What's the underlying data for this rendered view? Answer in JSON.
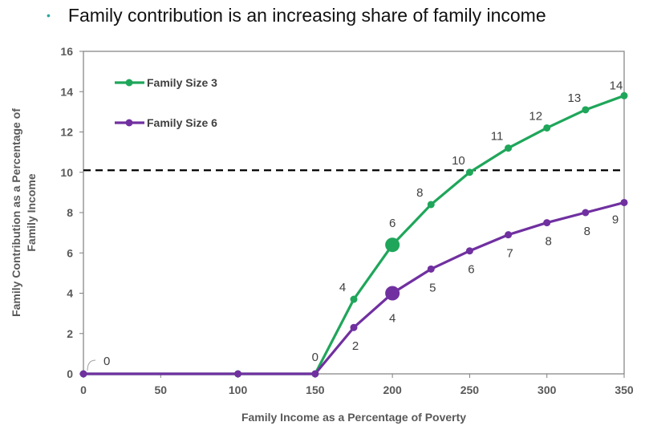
{
  "header": {
    "bullet": "•",
    "text": "Family contribution is an increasing share of family income"
  },
  "chart_data": {
    "type": "line",
    "title": "",
    "xlabel": "Family Income as a Percentage of Poverty",
    "ylabel_line1": "Family Contribution as a Percentage of",
    "ylabel_line2": "Family Income",
    "xlim": [
      0,
      350
    ],
    "ylim": [
      0,
      16
    ],
    "xticks": [
      0,
      50,
      100,
      150,
      200,
      250,
      300,
      350
    ],
    "yticks": [
      0,
      2,
      4,
      6,
      8,
      10,
      12,
      14,
      16
    ],
    "grid": false,
    "reference_line": {
      "y": 10.1,
      "style": "dashed"
    },
    "legend": {
      "position": "top-left"
    },
    "series": [
      {
        "name": "Family Size 3",
        "color": "#1fa65a",
        "x": [
          0,
          100,
          150,
          175,
          200,
          225,
          250,
          275,
          300,
          325,
          350
        ],
        "y": [
          0,
          0,
          0,
          3.7,
          6.4,
          8.4,
          10.0,
          11.2,
          12.2,
          13.1,
          13.8
        ],
        "highlight_x": 200,
        "labels": [
          {
            "x": 175,
            "y": 3.7,
            "text": "4"
          },
          {
            "x": 200,
            "y": 6.4,
            "text": "6"
          },
          {
            "x": 225,
            "y": 8.4,
            "text": "8"
          },
          {
            "x": 250,
            "y": 10.0,
            "text": "10"
          },
          {
            "x": 275,
            "y": 11.2,
            "text": "11"
          },
          {
            "x": 300,
            "y": 12.2,
            "text": "12"
          },
          {
            "x": 325,
            "y": 13.1,
            "text": "13"
          },
          {
            "x": 350,
            "y": 13.8,
            "text": "14"
          }
        ]
      },
      {
        "name": "Family Size 6",
        "color": "#7030a0",
        "x": [
          0,
          100,
          150,
          175,
          200,
          225,
          250,
          275,
          300,
          325,
          350
        ],
        "y": [
          0,
          0,
          0,
          2.3,
          4.0,
          5.2,
          6.1,
          6.9,
          7.5,
          8.0,
          8.5
        ],
        "highlight_x": 200,
        "labels": [
          {
            "x": 175,
            "y": 2.3,
            "text": "2"
          },
          {
            "x": 200,
            "y": 4.0,
            "text": "4"
          },
          {
            "x": 225,
            "y": 5.2,
            "text": "5"
          },
          {
            "x": 250,
            "y": 6.1,
            "text": "6"
          },
          {
            "x": 275,
            "y": 6.9,
            "text": "7"
          },
          {
            "x": 300,
            "y": 7.5,
            "text": "8"
          },
          {
            "x": 325,
            "y": 8.0,
            "text": "8"
          },
          {
            "x": 350,
            "y": 8.5,
            "text": "9"
          }
        ]
      }
    ],
    "shared_labels": [
      {
        "x": 0,
        "y": 0,
        "text": "0"
      },
      {
        "x": 150,
        "y": 0,
        "text": "0"
      }
    ]
  }
}
